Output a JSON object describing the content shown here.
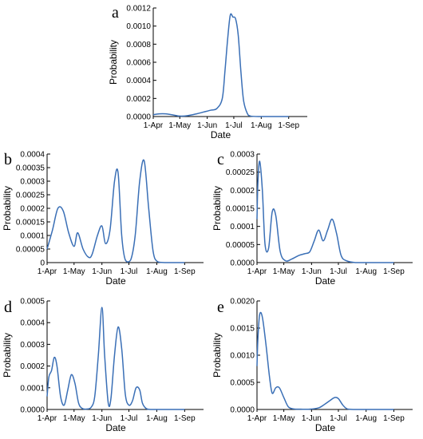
{
  "x_tick_labels": [
    "1-Apr",
    "1-May",
    "1-Jun",
    "1-Jul",
    "1-Aug",
    "1-Sep"
  ],
  "chart_data": [
    {
      "type": "line",
      "panel_label": "a",
      "xlabel": "Date",
      "ylabel": "Probability",
      "x_ticks": [
        "1-Apr",
        "1-May",
        "1-Jun",
        "1-Jul",
        "1-Aug",
        "1-Sep"
      ],
      "y_ticks": [
        "0.0000",
        "0.0002",
        "0.0004",
        "0.0006",
        "0.0008",
        "0.0010",
        "0.0012"
      ],
      "ylim": [
        0,
        0.0012
      ],
      "grid": false,
      "x": [
        "2020-04-01",
        "2020-04-08",
        "2020-04-15",
        "2020-04-22",
        "2020-05-01",
        "2020-05-10",
        "2020-05-20",
        "2020-05-28",
        "2020-06-05",
        "2020-06-12",
        "2020-06-18",
        "2020-06-21",
        "2020-06-24",
        "2020-06-27",
        "2020-06-30",
        "2020-07-03",
        "2020-07-06",
        "2020-07-09",
        "2020-07-12",
        "2020-07-16",
        "2020-07-20",
        "2020-08-01",
        "2020-09-01"
      ],
      "y": [
        2e-05,
        3e-05,
        3e-05,
        2e-05,
        5e-06,
        1e-05,
        3e-05,
        5e-05,
        7e-05,
        9e-05,
        0.0002,
        0.0005,
        0.00085,
        0.00112,
        0.0011,
        0.00108,
        0.0009,
        0.0005,
        0.00018,
        4e-05,
        5e-06,
        0,
        0
      ]
    },
    {
      "type": "line",
      "panel_label": "b",
      "xlabel": "Date",
      "ylabel": "Probability",
      "x_ticks": [
        "1-Apr",
        "1-May",
        "1-Jun",
        "1-Jul",
        "1-Aug",
        "1-Sep"
      ],
      "y_ticks": [
        "0",
        "0.00005",
        "0.0001",
        "0.00015",
        "0.0002",
        "0.00025",
        "0.0003",
        "0.00035",
        "0.0004"
      ],
      "ylim": [
        0,
        0.0004
      ],
      "grid": false,
      "x": [
        "2020-04-01",
        "2020-04-07",
        "2020-04-13",
        "2020-04-19",
        "2020-04-25",
        "2020-05-01",
        "2020-05-05",
        "2020-05-11",
        "2020-05-17",
        "2020-05-21",
        "2020-05-27",
        "2020-06-01",
        "2020-06-05",
        "2020-06-10",
        "2020-06-15",
        "2020-06-19",
        "2020-06-23",
        "2020-06-27",
        "2020-07-03",
        "2020-07-08",
        "2020-07-13",
        "2020-07-18",
        "2020-07-23",
        "2020-07-28",
        "2020-08-02",
        "2020-08-10",
        "2020-09-01"
      ],
      "y": [
        5e-05,
        0.00012,
        0.0002,
        0.00019,
        0.00011,
        6e-05,
        0.00011,
        5e-05,
        2e-05,
        3e-05,
        0.0001,
        0.000135,
        7e-05,
        0.00012,
        0.0003,
        0.00033,
        0.0001,
        1e-05,
        1e-05,
        0.0001,
        0.0003,
        0.000375,
        0.0002,
        4e-05,
        3e-06,
        0,
        0
      ]
    },
    {
      "type": "line",
      "panel_label": "c",
      "xlabel": "Date",
      "ylabel": "Probability",
      "x_ticks": [
        "1-Apr",
        "1-May",
        "1-Jun",
        "1-Jul",
        "1-Aug",
        "1-Sep"
      ],
      "y_ticks": [
        "0.0000",
        "0.00005",
        "0.0001",
        "0.00015",
        "0.0002",
        "0.00025",
        "0.0003"
      ],
      "ylim": [
        0,
        0.0003
      ],
      "grid": false,
      "x": [
        "2020-04-01",
        "2020-04-02",
        "2020-04-04",
        "2020-04-07",
        "2020-04-10",
        "2020-04-14",
        "2020-04-18",
        "2020-04-22",
        "2020-04-27",
        "2020-05-03",
        "2020-05-10",
        "2020-05-18",
        "2020-05-25",
        "2020-05-30",
        "2020-06-04",
        "2020-06-09",
        "2020-06-14",
        "2020-06-19",
        "2020-06-24",
        "2020-06-29",
        "2020-07-04",
        "2020-07-10",
        "2020-07-20",
        "2020-08-01",
        "2020-09-01"
      ],
      "y": [
        0.00012,
        0.00022,
        0.00028,
        0.0002,
        5e-05,
        4e-05,
        0.00014,
        0.00013,
        3e-05,
        5e-06,
        1e-05,
        2e-05,
        2.5e-05,
        3e-05,
        6e-05,
        9e-05,
        6e-05,
        9e-05,
        0.00012,
        8e-05,
        2e-05,
        5e-06,
        0,
        0,
        0
      ]
    },
    {
      "type": "line",
      "panel_label": "d",
      "xlabel": "Date",
      "ylabel": "Probability",
      "x_ticks": [
        "1-Apr",
        "1-May",
        "1-Jun",
        "1-Jul",
        "1-Aug",
        "1-Sep"
      ],
      "y_ticks": [
        "0.0000",
        "0.0001",
        "0.0002",
        "0.0003",
        "0.0004",
        "0.0005"
      ],
      "ylim": [
        0,
        0.0005
      ],
      "grid": false,
      "x": [
        "2020-04-01",
        "2020-04-03",
        "2020-04-06",
        "2020-04-09",
        "2020-04-12",
        "2020-04-16",
        "2020-04-20",
        "2020-04-24",
        "2020-04-28",
        "2020-05-02",
        "2020-05-06",
        "2020-05-10",
        "2020-05-15",
        "2020-05-20",
        "2020-05-24",
        "2020-05-28",
        "2020-06-01",
        "2020-06-04",
        "2020-06-08",
        "2020-06-11",
        "2020-06-15",
        "2020-06-19",
        "2020-06-23",
        "2020-06-27",
        "2020-07-01",
        "2020-07-05",
        "2020-07-09",
        "2020-07-13",
        "2020-07-16",
        "2020-07-20",
        "2020-07-25",
        "2020-08-01",
        "2020-09-01"
      ],
      "y": [
        6e-05,
        0.00015,
        0.00018,
        0.00024,
        0.0002,
        6e-05,
        2e-05,
        9e-05,
        0.00016,
        0.00012,
        3e-05,
        5e-06,
        2e-06,
        1e-05,
        6e-05,
        0.00025,
        0.00047,
        0.00025,
        3e-05,
        5e-05,
        0.00025,
        0.00038,
        0.00028,
        7e-05,
        2e-05,
        4e-05,
        0.0001,
        9e-05,
        3e-05,
        5e-06,
        0,
        0,
        0
      ]
    },
    {
      "type": "line",
      "panel_label": "e",
      "xlabel": "Date",
      "ylabel": "Probability",
      "x_ticks": [
        "1-Apr",
        "1-May",
        "1-Jun",
        "1-Jul",
        "1-Aug",
        "1-Sep"
      ],
      "y_ticks": [
        "0.0000",
        "0.0005",
        "0.0010",
        "0.0015",
        "0.0020"
      ],
      "ylim": [
        0,
        0.002
      ],
      "grid": false,
      "x": [
        "2020-04-01",
        "2020-04-02",
        "2020-04-04",
        "2020-04-07",
        "2020-04-11",
        "2020-04-15",
        "2020-04-18",
        "2020-04-22",
        "2020-04-26",
        "2020-05-01",
        "2020-05-06",
        "2020-05-12",
        "2020-05-20",
        "2020-05-30",
        "2020-06-09",
        "2020-06-16",
        "2020-06-22",
        "2020-06-27",
        "2020-07-01",
        "2020-07-06",
        "2020-07-11",
        "2020-07-20",
        "2020-08-01",
        "2020-09-01"
      ],
      "y": [
        0.0008,
        0.0013,
        0.00175,
        0.0017,
        0.0012,
        0.0006,
        0.0003,
        0.0004,
        0.0004,
        0.00022,
        5e-05,
        1e-05,
        5e-06,
        5e-06,
        3e-05,
        0.0001,
        0.00017,
        0.00022,
        0.0002,
        8e-05,
        1e-05,
        0,
        0,
        0
      ]
    }
  ]
}
